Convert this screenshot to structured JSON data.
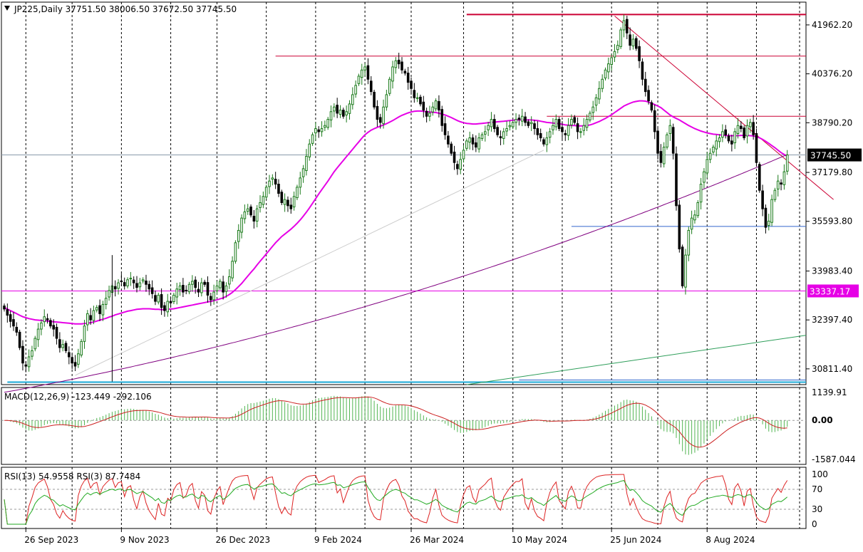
{
  "header": {
    "symbol_line": "JP225,Daily  37751.50 38006.50 37672.50 37745.50",
    "macd_line": "MACD(12,26,9) -123.449 -292.106",
    "rsi_line": "RSI(13) 54.9558  RSI(3) 87.7484"
  },
  "colors": {
    "up_candle": "#1a7a1a",
    "down_candle": "#000000",
    "ma_fast": "#e600e6",
    "ma_slow": "#800080",
    "resistance": "#cc0033",
    "support_blue": "#3366cc",
    "cyan_line": "#1aa8d6",
    "green_trend": "#2e9e5a",
    "macd_hist": "#52b552",
    "macd_signal": "#cc2020",
    "rsi13": "#22aa22",
    "rsi3": "#dd2222"
  },
  "chart_data": [
    {
      "type": "candlestick",
      "symbol": "JP225",
      "timeframe": "Daily",
      "ohlc_last": {
        "open": 37751.5,
        "high": 38006.5,
        "low": 37672.5,
        "close": 37745.5
      },
      "y_ticks": [
        "41962.20",
        "40376.20",
        "38790.20",
        "37179.80",
        "35593.80",
        "33983.40",
        "32397.40",
        "30811.40"
      ],
      "y_tick_values": [
        41962.2,
        40376.2,
        38790.2,
        37179.8,
        35593.8,
        33983.4,
        32397.4,
        30811.4
      ],
      "ylim": [
        30300,
        42700
      ],
      "x_ticks": [
        "26 Sep 2023",
        "9 Nov 2023",
        "26 Dec 2023",
        "9 Feb 2024",
        "26 Mar 2024",
        "10 May 2024",
        "25 Jun 2024",
        "8 Aug 2024"
      ],
      "price_labels": [
        {
          "text": "37745.50",
          "value": 37745.5,
          "style": "current"
        },
        {
          "text": "33337.17",
          "value": 33337.17,
          "style": "level"
        }
      ],
      "close_series": [
        32750,
        32550,
        32350,
        32200,
        32000,
        31500,
        31000,
        30900,
        31200,
        31400,
        31800,
        32100,
        32300,
        32500,
        32400,
        32200,
        32100,
        31800,
        31500,
        31600,
        31400,
        31200,
        31000,
        30900,
        31300,
        31700,
        32200,
        32600,
        32400,
        32700,
        32800,
        32600,
        32900,
        33100,
        33350,
        33500,
        33400,
        33600,
        33650,
        33500,
        33700,
        33750,
        33600,
        33450,
        33600,
        33700,
        33550,
        33400,
        33250,
        33000,
        33200,
        32800,
        32700,
        33000,
        32950,
        33200,
        33400,
        33500,
        33300,
        33350,
        33550,
        33650,
        33450,
        33300,
        33600,
        33550,
        33200,
        33050,
        33300,
        33500,
        33650,
        33300,
        33500,
        33800,
        34300,
        34900,
        35300,
        35700,
        35900,
        36000,
        35800,
        35600,
        36000,
        36200,
        36400,
        36700,
        36900,
        37000,
        36800,
        36500,
        36200,
        36300,
        36100,
        36000,
        36400,
        36700,
        37000,
        37300,
        37700,
        38100,
        38400,
        38600,
        38500,
        38600,
        38700,
        38900,
        39150,
        39300,
        39100,
        39200,
        39000,
        39150,
        39400,
        39700,
        40000,
        40300,
        40500,
        40600,
        40200,
        39800,
        39300,
        38900,
        38800,
        39300,
        39700,
        40200,
        40600,
        40800,
        40700,
        40500,
        40400,
        40100,
        39900,
        39600,
        39600,
        39400,
        39200,
        39000,
        39100,
        39300,
        39500,
        39200,
        38700,
        38400,
        38100,
        37800,
        37500,
        37300,
        37600,
        37900,
        38200,
        38300,
        38100,
        38000,
        38300,
        38400,
        38500,
        38700,
        38900,
        38600,
        38400,
        38300,
        38500,
        38600,
        38700,
        38800,
        38900,
        38900,
        39000,
        38800,
        38700,
        38800,
        38600,
        38400,
        38300,
        38100,
        38300,
        38500,
        38700,
        38900,
        38600,
        38500,
        38400,
        38700,
        38900,
        38800,
        38500,
        38500,
        38700,
        38900,
        39100,
        39300,
        39600,
        39900,
        40200,
        40500,
        40700,
        40900,
        41100,
        41300,
        41800,
        42100,
        41700,
        41300,
        41500,
        41200,
        40800,
        40200,
        39800,
        39500,
        39200,
        38500,
        37800,
        37500,
        38000,
        38400,
        38700,
        37800,
        36100,
        34700,
        33500,
        34500,
        35300,
        35700,
        35800,
        36200,
        36800,
        37200,
        37600,
        37800,
        38000,
        38200,
        38300,
        38500,
        38400,
        38200,
        38100,
        38500,
        38700,
        38600,
        38300,
        38700,
        38800,
        38400,
        37500,
        36600,
        36000,
        35400,
        35600,
        36300,
        36600,
        36900,
        36800,
        37200,
        37745.5
      ],
      "ma_fast_series": [
        32800,
        32750,
        32700,
        32650,
        32600,
        32550,
        32500,
        32470,
        32440,
        32420,
        32400,
        32390,
        32380,
        32370,
        32360,
        32350,
        32340,
        32330,
        32320,
        32310,
        32300,
        32290,
        32280,
        32270,
        32270,
        32270,
        32280,
        32290,
        32310,
        32330,
        32360,
        32390,
        32420,
        32450,
        32490,
        32520,
        32560,
        32590,
        32620,
        32650,
        32680,
        32700,
        32720,
        32740,
        32750,
        32760,
        32760,
        32760,
        32750,
        32740,
        32740,
        32730,
        32730,
        32740,
        32750,
        32760,
        32780,
        32800,
        32820,
        32840,
        32860,
        32880,
        32900,
        32920,
        32940,
        32960,
        32980,
        33000,
        33020,
        33050,
        33080,
        33110,
        33160,
        33220,
        33290,
        33380,
        33480,
        33580,
        33700,
        33820,
        33940,
        34050,
        34180,
        34300,
        34420,
        34540,
        34660,
        34780,
        34900,
        35000,
        35100,
        35180,
        35260,
        35340,
        35430,
        35530,
        35640,
        35760,
        35890,
        36030,
        36180,
        36330,
        36480,
        36620,
        36760,
        36900,
        37050,
        37200,
        37330,
        37450,
        37570,
        37690,
        37810,
        37930,
        38050,
        38170,
        38290,
        38400,
        38480,
        38550,
        38600,
        38640,
        38680,
        38720,
        38760,
        38810,
        38860,
        38920,
        38980,
        39030,
        39070,
        39110,
        39140,
        39160,
        39170,
        39170,
        39160,
        39150,
        39140,
        39130,
        39120,
        39100,
        39070,
        39040,
        39000,
        38960,
        38910,
        38860,
        38820,
        38790,
        38770,
        38760,
        38750,
        38750,
        38760,
        38770,
        38780,
        38790,
        38800,
        38810,
        38820,
        38830,
        38840,
        38850,
        38860,
        38870,
        38880,
        38880,
        38880,
        38880,
        38880,
        38880,
        38870,
        38860,
        38840,
        38820,
        38800,
        38790,
        38780,
        38770,
        38760,
        38740,
        38720,
        38710,
        38700,
        38700,
        38690,
        38690,
        38690,
        38700,
        38720,
        38750,
        38790,
        38830,
        38880,
        38930,
        38990,
        39050,
        39120,
        39190,
        39260,
        39330,
        39380,
        39420,
        39460,
        39480,
        39500,
        39500,
        39490,
        39460,
        39420,
        39380,
        39330,
        39280,
        39200,
        39120,
        39040,
        38980,
        38930,
        38880,
        38820,
        38760,
        38700,
        38650,
        38600,
        38560,
        38520,
        38490,
        38460,
        38440,
        38420,
        38410,
        38400,
        38390,
        38380,
        38370,
        38370,
        38370,
        38370,
        38380,
        38380,
        38380,
        38370,
        38360,
        38340,
        38300,
        38250,
        38190,
        38120,
        38050,
        37980,
        37900,
        37820,
        37760,
        37700
      ],
      "ma_slow_series_start_end": [
        [
          0,
          30050
        ],
        [
          262,
          37720
        ]
      ],
      "resistance_levels": [
        42300,
        40950,
        39000
      ],
      "trend_line": [
        [
          198,
          42250
        ],
        [
          262,
          36850
        ]
      ],
      "support_level": 35430,
      "bottom_levels": [
        30450,
        30380
      ],
      "green_trend": [
        [
          150,
          30300
        ],
        [
          275,
          31900
        ]
      ]
    },
    {
      "type": "histogram+line",
      "name": "MACD(12,26,9)",
      "main": -123.449,
      "signal": -292.106,
      "y_ticks": [
        "1139.91",
        "0.00",
        "-1587.044"
      ],
      "ylim": [
        -1700,
        1250
      ]
    },
    {
      "type": "line",
      "name": "RSI",
      "series": [
        {
          "name": "RSI(13)",
          "last": 54.9558
        },
        {
          "name": "RSI(3)",
          "last": 87.7484
        }
      ],
      "y_ticks": [
        "100",
        "70",
        "30",
        "0"
      ],
      "levels": [
        70,
        30
      ],
      "ylim": [
        0,
        100
      ]
    }
  ]
}
